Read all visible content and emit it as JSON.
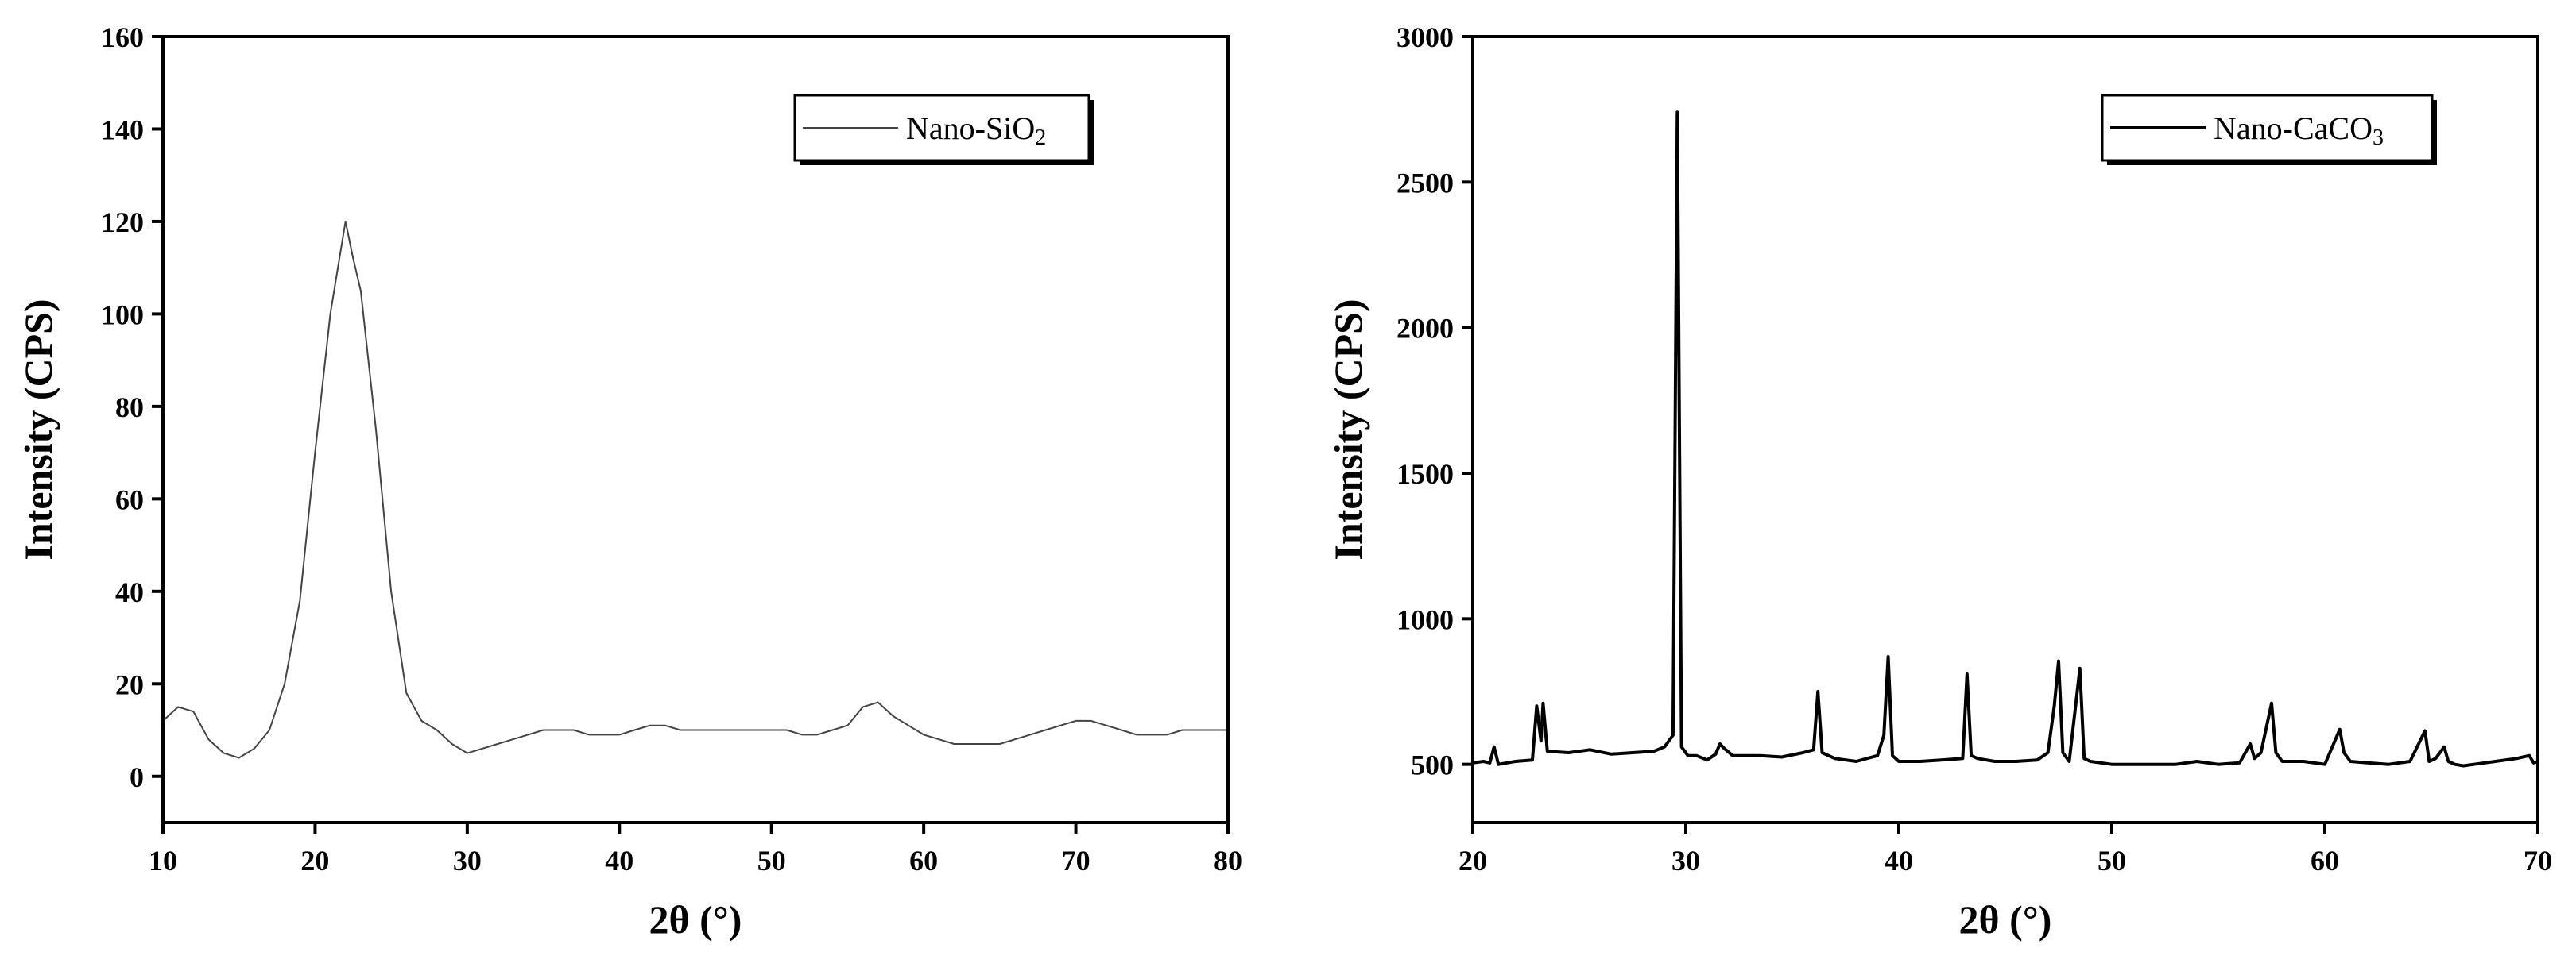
{
  "chart_data": [
    {
      "type": "line",
      "xlabel": "2θ (°)",
      "ylabel": "Intensity (CPS)",
      "xlim": [
        10,
        80
      ],
      "ylim": [
        -10,
        160
      ],
      "xticks": [
        10,
        20,
        30,
        40,
        50,
        60,
        70,
        80
      ],
      "yticks": [
        0,
        20,
        40,
        60,
        80,
        100,
        120,
        140,
        160
      ],
      "legend": {
        "placement": "top-right",
        "label": "Nano-SiO",
        "subscript": "2"
      },
      "line_color": "#444444",
      "series": [
        {
          "name": "Nano-SiO2",
          "x": [
            10,
            11,
            12,
            13,
            14,
            15,
            16,
            17,
            18,
            19,
            20,
            21,
            21.5,
            22,
            22.5,
            23,
            24,
            25,
            26,
            27,
            28,
            29,
            30,
            31,
            32,
            33,
            34,
            35,
            36,
            37,
            38,
            39,
            40,
            41,
            42,
            43,
            44,
            45,
            46,
            47,
            48,
            49,
            50,
            51,
            52,
            53,
            54,
            55,
            56,
            57,
            58,
            59,
            60,
            61,
            62,
            63,
            64,
            65,
            66,
            67,
            68,
            69,
            70,
            71,
            72,
            73,
            74,
            75,
            76,
            77,
            78,
            79,
            80
          ],
          "values": [
            12,
            15,
            14,
            8,
            5,
            4,
            6,
            10,
            20,
            38,
            70,
            100,
            110,
            120,
            112,
            105,
            75,
            40,
            18,
            12,
            10,
            7,
            5,
            6,
            7,
            8,
            9,
            10,
            10,
            10,
            9,
            9,
            9,
            10,
            11,
            11,
            10,
            10,
            10,
            10,
            10,
            10,
            10,
            10,
            9,
            9,
            10,
            11,
            15,
            16,
            13,
            11,
            9,
            8,
            7,
            7,
            7,
            7,
            8,
            9,
            10,
            11,
            12,
            12,
            11,
            10,
            9,
            9,
            9,
            10,
            10,
            10,
            10
          ]
        }
      ]
    },
    {
      "type": "line",
      "xlabel": "2θ (°)",
      "ylabel": "Intensity (CPS)",
      "xlim": [
        20,
        70
      ],
      "ylim": [
        300,
        3000
      ],
      "xticks": [
        20,
        30,
        40,
        50,
        60,
        70
      ],
      "yticks": [
        500,
        1000,
        1500,
        2000,
        2500,
        3000
      ],
      "legend": {
        "placement": "top-right",
        "label": "Nano-CaCO",
        "subscript": "3"
      },
      "line_color": "#000000",
      "series": [
        {
          "name": "Nano-CaCO3",
          "x": [
            20,
            20.5,
            20.8,
            21.0,
            21.2,
            22.0,
            22.8,
            23.0,
            23.2,
            23.3,
            23.5,
            24.5,
            25.5,
            26.5,
            27.5,
            28.5,
            29.0,
            29.4,
            29.6,
            29.8,
            30.1,
            30.5,
            31.0,
            31.4,
            31.6,
            31.8,
            32.2,
            33.5,
            34.5,
            35.5,
            36.0,
            36.2,
            36.4,
            37.0,
            38.0,
            39.0,
            39.3,
            39.5,
            39.7,
            40.0,
            41.0,
            42.0,
            43.0,
            43.2,
            43.4,
            43.7,
            44.5,
            45.5,
            46.5,
            47.0,
            47.3,
            47.5,
            47.7,
            48.0,
            48.3,
            48.5,
            48.7,
            49.0,
            50.0,
            51.0,
            52.0,
            53.0,
            54.0,
            55.0,
            56.0,
            56.5,
            56.7,
            57.0,
            57.5,
            57.7,
            58.0,
            59.0,
            60.0,
            60.7,
            60.9,
            61.2,
            62.0,
            63.0,
            64.0,
            64.7,
            64.9,
            65.2,
            65.6,
            65.8,
            66.1,
            66.5,
            67.0,
            68.0,
            69.0,
            69.6,
            69.8,
            70.0
          ],
          "values": [
            505,
            510,
            505,
            560,
            500,
            510,
            515,
            700,
            580,
            710,
            545,
            540,
            550,
            535,
            540,
            545,
            560,
            600,
            2740,
            560,
            530,
            530,
            515,
            535,
            570,
            555,
            530,
            530,
            525,
            540,
            550,
            750,
            540,
            520,
            510,
            530,
            600,
            870,
            530,
            510,
            510,
            515,
            520,
            810,
            530,
            520,
            510,
            510,
            515,
            540,
            700,
            855,
            540,
            510,
            700,
            830,
            520,
            510,
            500,
            500,
            500,
            500,
            510,
            500,
            505,
            570,
            520,
            540,
            710,
            540,
            510,
            510,
            500,
            620,
            540,
            510,
            505,
            500,
            510,
            615,
            510,
            520,
            560,
            510,
            500,
            495,
            500,
            510,
            520,
            530,
            505,
            510
          ]
        }
      ]
    }
  ]
}
